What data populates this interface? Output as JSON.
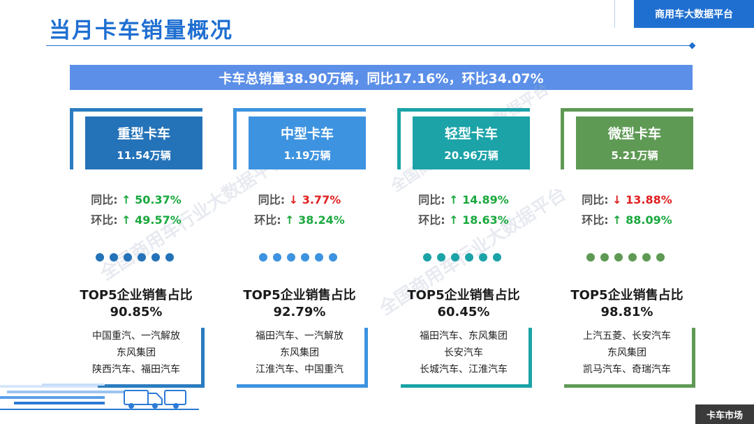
{
  "header": {
    "title": "当月卡车销量概况",
    "brand": "商用车大数据平台"
  },
  "summary": "卡车总销量38.90万辆，同比17.16%，环比34.07%",
  "watermark": "全国商用车行业大数据平台",
  "segments": [
    {
      "name": "重型卡车",
      "volume": "11.54万辆",
      "yoy_label": "同比:",
      "yoy_arrow": "↑",
      "yoy": "50.37%",
      "mom_label": "环比:",
      "mom_arrow": "↑",
      "mom": "49.57%",
      "top5_title": "TOP5企业销售占比",
      "top5_share": "90.85%",
      "companies": [
        "中国重汽、一汽解放",
        "东风集团",
        "陕西汽车、福田汽车"
      ],
      "color": "#2472b8",
      "frame_color": "#2a7cc0"
    },
    {
      "name": "中型卡车",
      "volume": "1.19万辆",
      "yoy_label": "同比:",
      "yoy_arrow": "↓",
      "yoy": "3.77%",
      "mom_label": "环比:",
      "mom_arrow": "↑",
      "mom": "38.24%",
      "top5_title": "TOP5企业销售占比",
      "top5_share": "92.79%",
      "companies": [
        "福田汽车、一汽解放",
        "东风集团",
        "江淮汽车、中国重汽"
      ],
      "color": "#3d93e0",
      "frame_color": "#3d93e0"
    },
    {
      "name": "轻型卡车",
      "volume": "20.96万辆",
      "yoy_label": "同比:",
      "yoy_arrow": "↑",
      "yoy": "14.89%",
      "mom_label": "环比:",
      "mom_arrow": "↑",
      "mom": "18.63%",
      "top5_title": "TOP5企业销售占比",
      "top5_share": "60.45%",
      "companies": [
        "福田汽车、东风集团",
        "长安汽车",
        "长城汽车、江淮汽车"
      ],
      "color": "#1ba3a8",
      "frame_color": "#1ba3a8"
    },
    {
      "name": "微型卡车",
      "volume": "5.21万辆",
      "yoy_label": "同比:",
      "yoy_arrow": "↓",
      "yoy": "13.88%",
      "mom_label": "环比:",
      "mom_arrow": "↑",
      "mom": "88.09%",
      "top5_title": "TOP5企业销售占比",
      "top5_share": "98.81%",
      "companies": [
        "上汽五菱、长安汽车",
        "东风集团",
        "凯马汽车、奇瑞汽车"
      ],
      "color": "#5f9a55",
      "frame_color": "#5f9a55"
    }
  ],
  "footer_tag": "卡车市场"
}
